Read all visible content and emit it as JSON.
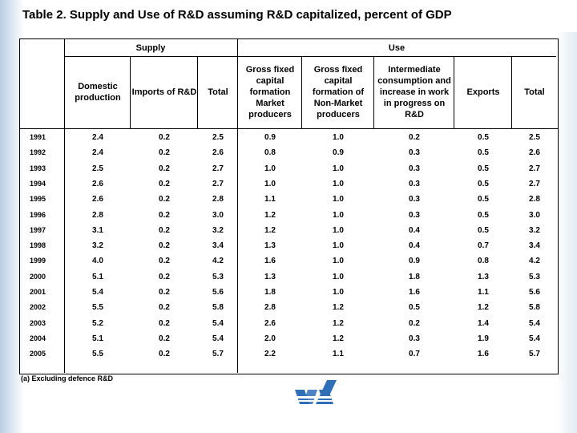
{
  "title": "Table 2. Supply and Use of R&D assuming R&D capitalized, percent of GDP",
  "groups": {
    "supply": "Supply",
    "use": "Use"
  },
  "columns": [
    "Domestic production",
    "Imports of R&D",
    "Total",
    "Gross fixed capital formation Market producers",
    "Gross fixed capital formation of Non-Market producers",
    "Intermediate consumption and increase in work in progress on R&D",
    "Exports",
    "Total"
  ],
  "rows": [
    {
      "year": "1991",
      "values": [
        "2.4",
        "0.2",
        "2.5",
        "0.9",
        "1.0",
        "0.2",
        "0.5",
        "2.5"
      ]
    },
    {
      "year": "1992",
      "values": [
        "2.4",
        "0.2",
        "2.6",
        "0.8",
        "0.9",
        "0.3",
        "0.5",
        "2.6"
      ]
    },
    {
      "year": "1993",
      "values": [
        "2.5",
        "0.2",
        "2.7",
        "1.0",
        "1.0",
        "0.3",
        "0.5",
        "2.7"
      ]
    },
    {
      "year": "1994",
      "values": [
        "2.6",
        "0.2",
        "2.7",
        "1.0",
        "1.0",
        "0.3",
        "0.5",
        "2.7"
      ]
    },
    {
      "year": "1995",
      "values": [
        "2.6",
        "0.2",
        "2.8",
        "1.1",
        "1.0",
        "0.3",
        "0.5",
        "2.8"
      ]
    },
    {
      "year": "1996",
      "values": [
        "2.8",
        "0.2",
        "3.0",
        "1.2",
        "1.0",
        "0.3",
        "0.5",
        "3.0"
      ]
    },
    {
      "year": "1997",
      "values": [
        "3.1",
        "0.2",
        "3.2",
        "1.2",
        "1.0",
        "0.4",
        "0.5",
        "3.2"
      ]
    },
    {
      "year": "1998",
      "values": [
        "3.2",
        "0.2",
        "3.4",
        "1.3",
        "1.0",
        "0.4",
        "0.7",
        "3.4"
      ]
    },
    {
      "year": "1999",
      "values": [
        "4.0",
        "0.2",
        "4.2",
        "1.6",
        "1.0",
        "0.9",
        "0.8",
        "4.2"
      ]
    },
    {
      "year": "2000",
      "values": [
        "5.1",
        "0.2",
        "5.3",
        "1.3",
        "1.0",
        "1.8",
        "1.3",
        "5.3"
      ]
    },
    {
      "year": "2001",
      "values": [
        "5.4",
        "0.2",
        "5.6",
        "1.8",
        "1.0",
        "1.6",
        "1.1",
        "5.6"
      ]
    },
    {
      "year": "2002",
      "values": [
        "5.5",
        "0.2",
        "5.8",
        "2.8",
        "1.2",
        "0.5",
        "1.2",
        "5.8"
      ]
    },
    {
      "year": "2003",
      "values": [
        "5.2",
        "0.2",
        "5.4",
        "2.6",
        "1.2",
        "0.2",
        "1.4",
        "5.4"
      ]
    },
    {
      "year": "2004",
      "values": [
        "5.1",
        "0.2",
        "5.4",
        "2.0",
        "1.2",
        "0.3",
        "1.9",
        "5.4"
      ]
    },
    {
      "year": "2005",
      "values": [
        "5.5",
        "0.2",
        "5.7",
        "2.2",
        "1.1",
        "0.7",
        "1.6",
        "5.7"
      ]
    }
  ],
  "footnote": "(a) Excluding defence R&D",
  "colors": {
    "background": "#ffffff",
    "logo": "#2e6fb8",
    "fade": "#b9cde3"
  },
  "logo_icon": "statistics-office-logo-icon"
}
